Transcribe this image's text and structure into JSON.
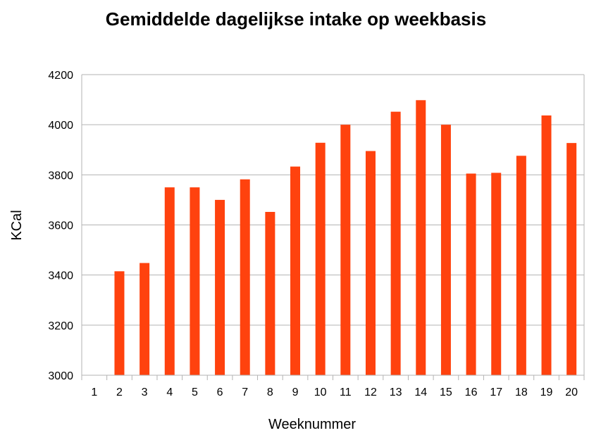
{
  "chart_data": {
    "type": "bar",
    "title": "Gemiddelde dagelijkse intake op weekbasis",
    "xlabel": "Weeknummer",
    "ylabel": "KCal",
    "categories": [
      "1",
      "2",
      "3",
      "4",
      "5",
      "6",
      "7",
      "8",
      "9",
      "10",
      "11",
      "12",
      "13",
      "14",
      "15",
      "16",
      "17",
      "18",
      "19",
      "20"
    ],
    "values": [
      null,
      3415,
      3448,
      3750,
      3750,
      3700,
      3782,
      3652,
      3833,
      3928,
      4000,
      3895,
      4052,
      4098,
      4000,
      3805,
      3808,
      3876,
      4037,
      3927
    ],
    "ylim": [
      3000,
      4200
    ],
    "yticks": [
      3000,
      3200,
      3400,
      3600,
      3800,
      4000,
      4200
    ],
    "grid": true,
    "legend": "none",
    "bar_color": "#ff420e",
    "grid_color": "#b3b3b3"
  }
}
